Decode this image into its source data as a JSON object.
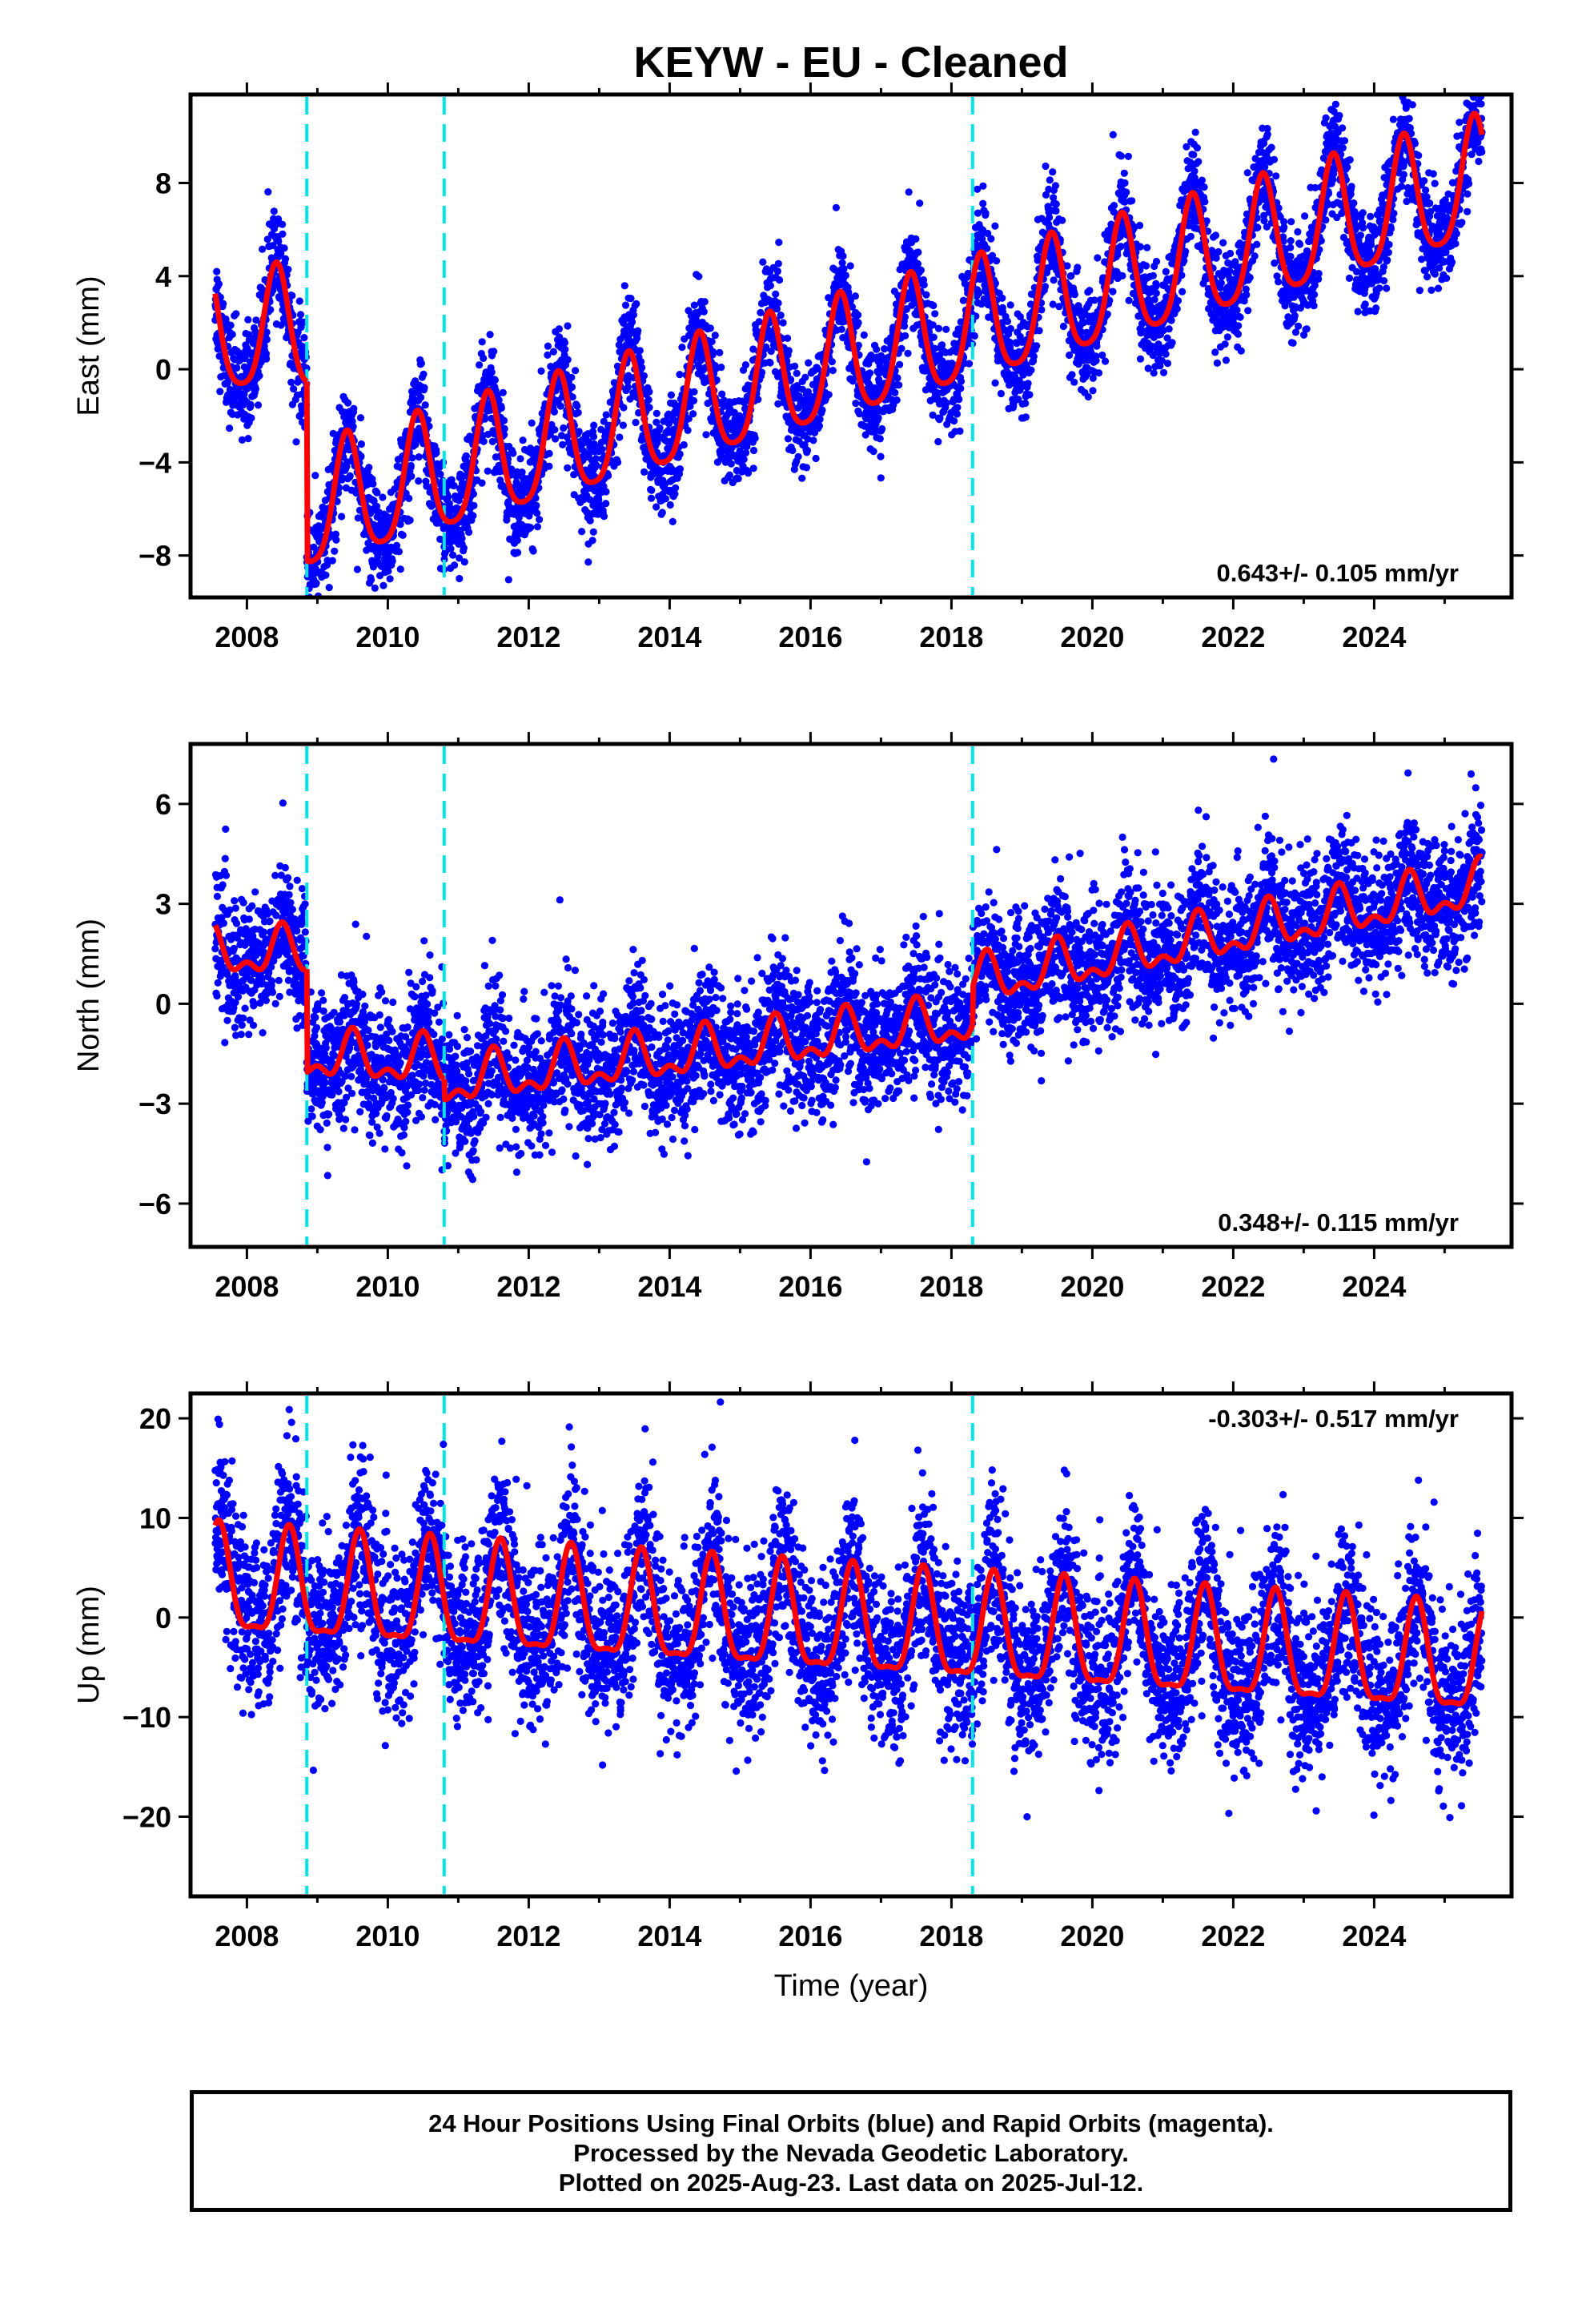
{
  "title": "KEYW  - EU - Cleaned",
  "xlabel": "Time (year)",
  "caption": {
    "line1": "24 Hour Positions Using Final Orbits (blue) and Rapid Orbits (magenta).",
    "line2": "Processed by the Nevada Geodetic Laboratory.",
    "line3": "Plotted on 2025-Aug-23. Last data on 2025-Jul-12."
  },
  "chart_data": [
    {
      "type": "scatter",
      "ylabel": "East (mm)",
      "rate_label": "0.643+/- 0.105 mm/yr",
      "xlim": [
        2007.2,
        2025.95
      ],
      "ylim": [
        -9.8,
        11.8
      ],
      "xticks": [
        2008,
        2010,
        2012,
        2014,
        2016,
        2018,
        2020,
        2022,
        2024
      ],
      "yticks": [
        -8,
        -4,
        0,
        4,
        8
      ],
      "offset_epochs": [
        2008.85,
        2010.8,
        2018.3
      ],
      "data_span": [
        2007.55,
        2025.53
      ],
      "model": {
        "segments": [
          [
            2007.55,
            2008.85,
            1.5,
            0.0
          ],
          [
            2008.85,
            2025.53,
            -6.2,
            0.85
          ]
        ],
        "amp1": 2.6,
        "amp2": 0.5,
        "phase_peak": 0.42
      },
      "scatter_sd": 1.1,
      "marker_color": "#0000ff",
      "model_color": "#ff0000",
      "grid": false
    },
    {
      "type": "scatter",
      "ylabel": "North (mm)",
      "rate_label": "0.348+/- 0.115 mm/yr",
      "xlim": [
        2007.2,
        2025.95
      ],
      "ylim": [
        -7.3,
        7.8
      ],
      "xticks": [
        2008,
        2010,
        2012,
        2014,
        2016,
        2018,
        2020,
        2022,
        2024
      ],
      "yticks": [
        -6,
        -3,
        0,
        3,
        6
      ],
      "offset_epochs": [
        2008.85,
        2010.8,
        2018.3
      ],
      "data_span": [
        2007.55,
        2025.53
      ],
      "model": {
        "segments": [
          [
            2007.55,
            2008.85,
            1.5,
            0.0
          ],
          [
            2008.85,
            2010.8,
            -1.6,
            -0.1
          ],
          [
            2010.8,
            2018.3,
            -2.4,
            0.25
          ],
          [
            2018.3,
            2025.53,
            0.6,
            0.4
          ]
        ],
        "amp1": 0.6,
        "amp2": 0.35,
        "phase_peak": 0.5
      },
      "scatter_sd": 1.0,
      "marker_color": "#0000ff",
      "model_color": "#ff0000",
      "grid": false
    },
    {
      "type": "scatter",
      "ylabel": "Up (mm)",
      "rate_label": "-0.303+/- 0.517 mm/yr",
      "xlim": [
        2007.2,
        2025.95
      ],
      "ylim": [
        -28,
        22.5
      ],
      "xticks": [
        2008,
        2010,
        2012,
        2014,
        2016,
        2018,
        2020,
        2022,
        2024
      ],
      "yticks": [
        -20,
        -10,
        0,
        10,
        20
      ],
      "offset_epochs": [
        2008.85,
        2010.8,
        2018.3
      ],
      "data_span": [
        2007.55,
        2025.53
      ],
      "model": {
        "segments": [
          [
            2007.55,
            2025.53,
            3.0,
            -0.45
          ]
        ],
        "amp1": 5.2,
        "amp2": 1.6,
        "phase_peak": 0.6
      },
      "scatter_sd": 4.2,
      "marker_color": "#0000ff",
      "model_color": "#ff0000",
      "grid": false
    }
  ]
}
